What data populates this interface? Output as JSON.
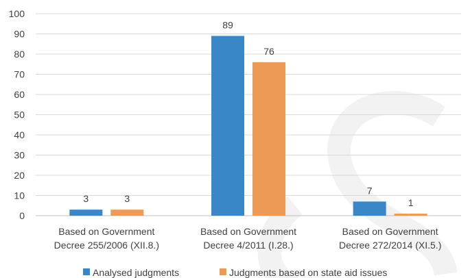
{
  "chart_data": {
    "type": "bar",
    "categories": [
      [
        "Based on Government",
        "Decree 255/2006 (XII.8.)"
      ],
      [
        "Based on Government",
        "Decree 4/2011 (I.28.)"
      ],
      [
        "Based on Government",
        "Decree 272/2014 (XI.5.)"
      ]
    ],
    "series": [
      {
        "name": "Analysed judgments",
        "values": [
          3,
          89,
          7
        ],
        "color": "#3a87c8"
      },
      {
        "name": "Judgments based on state aid issues",
        "values": [
          3,
          76,
          1
        ],
        "color": "#ec9a56"
      }
    ],
    "ylim": [
      0,
      100
    ],
    "yticks": [
      0,
      10,
      20,
      30,
      40,
      50,
      60,
      70,
      80,
      90,
      100
    ],
    "grid": true,
    "legend_position": "bottom",
    "data_labels": true
  }
}
